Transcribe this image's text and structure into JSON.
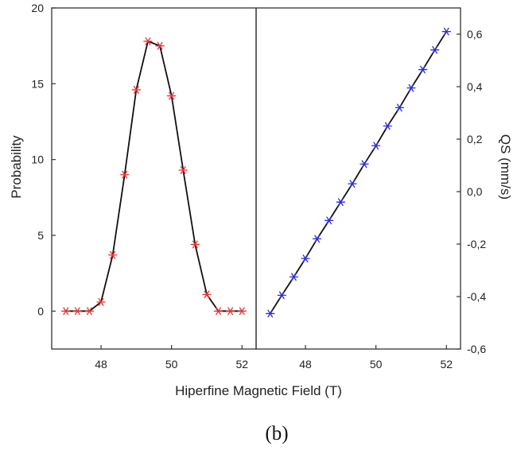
{
  "figure": {
    "caption": "(b)",
    "xlabel": "Hiperfine Magnetic Field (T)",
    "x_ticks": [
      "48",
      "50",
      "52"
    ]
  },
  "chart_data": [
    {
      "type": "line",
      "ylabel": "Probability",
      "xlabel": "Hiperfine Magnetic Field (T)",
      "xlim": [
        46.6,
        52.4
      ],
      "ylim": [
        -2.5,
        20
      ],
      "y_ticks": [
        "0",
        "5",
        "10",
        "15",
        "20"
      ],
      "marker": "asterisk",
      "color": "#ff2a2a",
      "line_color": "#111111",
      "x": [
        47.0,
        47.33,
        47.67,
        48.0,
        48.33,
        48.67,
        49.0,
        49.33,
        49.67,
        50.0,
        50.33,
        50.67,
        51.0,
        51.33,
        51.67,
        52.0
      ],
      "y": [
        0,
        0,
        0,
        0.6,
        3.7,
        9.0,
        14.6,
        17.8,
        17.5,
        14.2,
        9.3,
        4.4,
        1.1,
        0,
        0,
        0
      ]
    },
    {
      "type": "line",
      "ylabel": "QS (mm/s)",
      "xlabel": "Hiperfine Magnetic Field (T)",
      "xlim": [
        46.6,
        52.4
      ],
      "ylim": [
        -0.6,
        0.7
      ],
      "y_ticks": [
        "-0,6",
        "-0,4",
        "-0,2",
        "0,0",
        "0,2",
        "0,4",
        "0,6"
      ],
      "y_axis_side": "right",
      "marker": "asterisk",
      "color": "#2a2aff",
      "line_color": "#111111",
      "x": [
        47.0,
        47.33,
        47.67,
        48.0,
        48.33,
        48.67,
        49.0,
        49.33,
        49.67,
        50.0,
        50.33,
        50.67,
        51.0,
        51.33,
        51.67,
        52.0
      ],
      "y": [
        -0.465,
        -0.395,
        -0.325,
        -0.255,
        -0.18,
        -0.11,
        -0.04,
        0.03,
        0.105,
        0.175,
        0.25,
        0.32,
        0.395,
        0.465,
        0.54,
        0.61
      ]
    }
  ]
}
